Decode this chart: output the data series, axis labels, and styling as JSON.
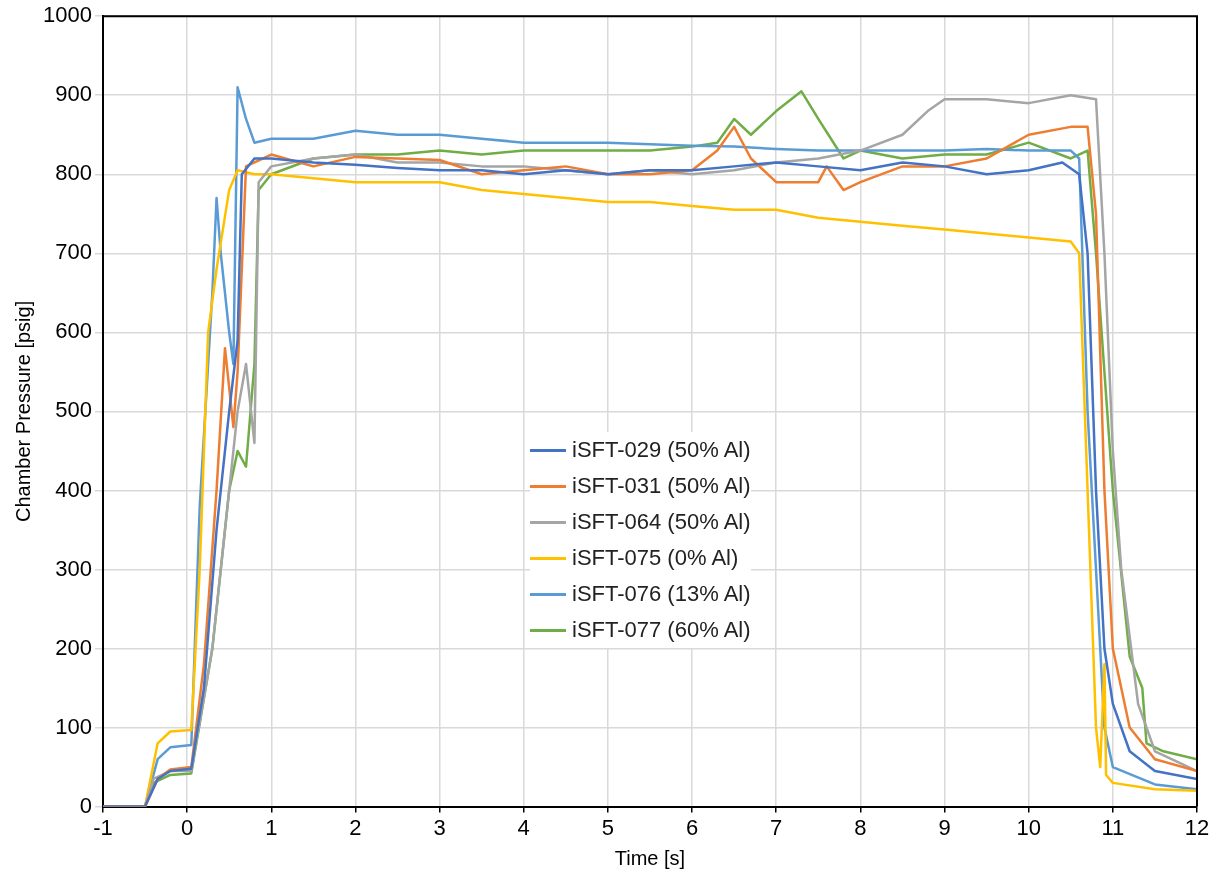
{
  "chart_data": {
    "type": "line",
    "xlabel": "Time [s]",
    "ylabel": "Chamber Pressure [psig]",
    "xlim": [
      -1,
      12
    ],
    "xticks": [
      -1,
      0,
      1,
      2,
      3,
      4,
      5,
      6,
      7,
      8,
      9,
      10,
      11,
      12
    ],
    "ylim": [
      0,
      1000
    ],
    "yticks": [
      0,
      100,
      200,
      300,
      400,
      500,
      600,
      700,
      800,
      900,
      1000
    ],
    "grid": true,
    "legend": "center",
    "marker": "none",
    "line_style": "solid",
    "series": [
      {
        "name": "iSFT-029 (50% Al)",
        "color": "#4472c4",
        "x": [
          -1,
          -0.5,
          -0.35,
          -0.2,
          0.05,
          0.2,
          0.35,
          0.5,
          0.6,
          0.65,
          0.8,
          1,
          1.5,
          2,
          2.5,
          3,
          3.5,
          4,
          4.5,
          5,
          5.5,
          6,
          6.5,
          7,
          7.5,
          8,
          8.5,
          9,
          9.5,
          10,
          10.4,
          10.6,
          10.7,
          10.8,
          10.9,
          11,
          11.2,
          11.5,
          12
        ],
        "values": [
          0,
          0,
          35,
          45,
          48,
          150,
          350,
          500,
          590,
          800,
          820,
          820,
          815,
          812,
          808,
          805,
          805,
          800,
          805,
          800,
          805,
          805,
          810,
          815,
          810,
          805,
          815,
          810,
          800,
          805,
          815,
          800,
          700,
          400,
          200,
          130,
          70,
          45,
          35
        ]
      },
      {
        "name": "iSFT-031 (50% Al)",
        "color": "#ed7d31",
        "x": [
          -1,
          -0.5,
          -0.35,
          -0.2,
          0.05,
          0.2,
          0.35,
          0.45,
          0.55,
          0.6,
          0.7,
          1,
          1.5,
          2,
          2.5,
          3,
          3.5,
          4,
          4.5,
          5,
          5.5,
          6,
          6.3,
          6.5,
          6.7,
          7,
          7.5,
          7.6,
          7.8,
          8,
          8.5,
          9,
          9.5,
          10,
          10.5,
          10.7,
          10.8,
          10.9,
          11,
          11.2,
          11.5,
          12
        ],
        "values": [
          0,
          0,
          35,
          47,
          50,
          180,
          400,
          580,
          480,
          550,
          810,
          825,
          810,
          822,
          820,
          818,
          800,
          805,
          810,
          800,
          800,
          805,
          830,
          860,
          820,
          790,
          790,
          810,
          780,
          790,
          810,
          810,
          820,
          850,
          860,
          860,
          750,
          400,
          200,
          100,
          60,
          45
        ]
      },
      {
        "name": "iSFT-064 (50% Al)",
        "color": "#a5a5a5",
        "x": [
          -1,
          -0.5,
          -0.4,
          -0.2,
          0.05,
          0.3,
          0.5,
          0.6,
          0.7,
          0.8,
          0.85,
          1,
          1.5,
          2,
          2.5,
          3,
          3.5,
          4,
          4.5,
          5,
          5.5,
          6,
          6.5,
          7,
          7.5,
          8,
          8.5,
          8.8,
          9,
          9.5,
          10,
          10.5,
          10.8,
          10.9,
          11,
          11.1,
          11.3,
          11.5,
          12
        ],
        "values": [
          0,
          0,
          35,
          45,
          45,
          200,
          400,
          500,
          560,
          460,
          790,
          810,
          820,
          825,
          815,
          815,
          810,
          810,
          805,
          800,
          805,
          800,
          805,
          815,
          820,
          830,
          850,
          880,
          895,
          895,
          890,
          900,
          895,
          700,
          450,
          300,
          130,
          70,
          45
        ]
      },
      {
        "name": "iSFT-075 (0% Al)",
        "color": "#ffc000",
        "x": [
          -1,
          -0.5,
          -0.35,
          -0.2,
          0.05,
          0.15,
          0.25,
          0.35,
          0.5,
          0.6,
          0.8,
          1,
          1.5,
          2,
          2.5,
          3,
          3.5,
          4,
          4.5,
          5,
          5.5,
          6,
          6.5,
          7,
          7.5,
          8,
          8.5,
          9,
          9.5,
          10,
          10.5,
          10.6,
          10.7,
          10.8,
          10.85,
          10.9,
          10.92,
          11,
          11.5,
          12
        ],
        "values": [
          0,
          0,
          80,
          95,
          97,
          300,
          600,
          680,
          780,
          805,
          800,
          800,
          795,
          790,
          790,
          790,
          780,
          775,
          770,
          765,
          765,
          760,
          755,
          755,
          745,
          740,
          735,
          730,
          725,
          720,
          715,
          700,
          400,
          100,
          50,
          180,
          40,
          30,
          22,
          20
        ]
      },
      {
        "name": "iSFT-076 (13% Al)",
        "color": "#5b9bd5",
        "x": [
          -1,
          -0.5,
          -0.35,
          -0.2,
          0.05,
          0.15,
          0.3,
          0.35,
          0.4,
          0.5,
          0.55,
          0.6,
          0.7,
          0.8,
          1,
          1.5,
          2,
          2.5,
          3,
          3.5,
          4,
          4.5,
          5,
          5.5,
          6,
          6.5,
          7,
          7.5,
          8,
          8.5,
          9,
          9.5,
          10,
          10.5,
          10.6,
          10.7,
          10.8,
          10.9,
          11,
          11.5,
          12
        ],
        "values": [
          0,
          0,
          60,
          75,
          78,
          380,
          650,
          770,
          700,
          600,
          560,
          910,
          870,
          840,
          845,
          845,
          855,
          850,
          850,
          845,
          840,
          840,
          840,
          838,
          836,
          835,
          832,
          830,
          830,
          830,
          830,
          832,
          830,
          830,
          820,
          500,
          300,
          100,
          50,
          28,
          22
        ]
      },
      {
        "name": "iSFT-077 (60% Al)",
        "color": "#70ad47",
        "x": [
          -1,
          -0.5,
          -0.4,
          -0.2,
          0.05,
          0.3,
          0.5,
          0.6,
          0.7,
          0.8,
          0.85,
          1,
          1.5,
          2,
          2.5,
          3,
          3.5,
          4,
          4.5,
          5,
          5.5,
          6,
          6.3,
          6.5,
          6.7,
          7,
          7.3,
          7.5,
          7.8,
          8,
          8.5,
          9,
          9.5,
          10,
          10.5,
          10.7,
          10.8,
          11,
          11.2,
          11.35,
          11.4,
          11.6,
          12
        ],
        "values": [
          0,
          0,
          30,
          40,
          42,
          200,
          400,
          450,
          430,
          560,
          780,
          800,
          820,
          825,
          825,
          830,
          825,
          830,
          830,
          830,
          830,
          835,
          840,
          870,
          850,
          880,
          905,
          870,
          820,
          830,
          820,
          825,
          825,
          840,
          820,
          830,
          700,
          400,
          190,
          150,
          80,
          70,
          60
        ]
      }
    ]
  }
}
